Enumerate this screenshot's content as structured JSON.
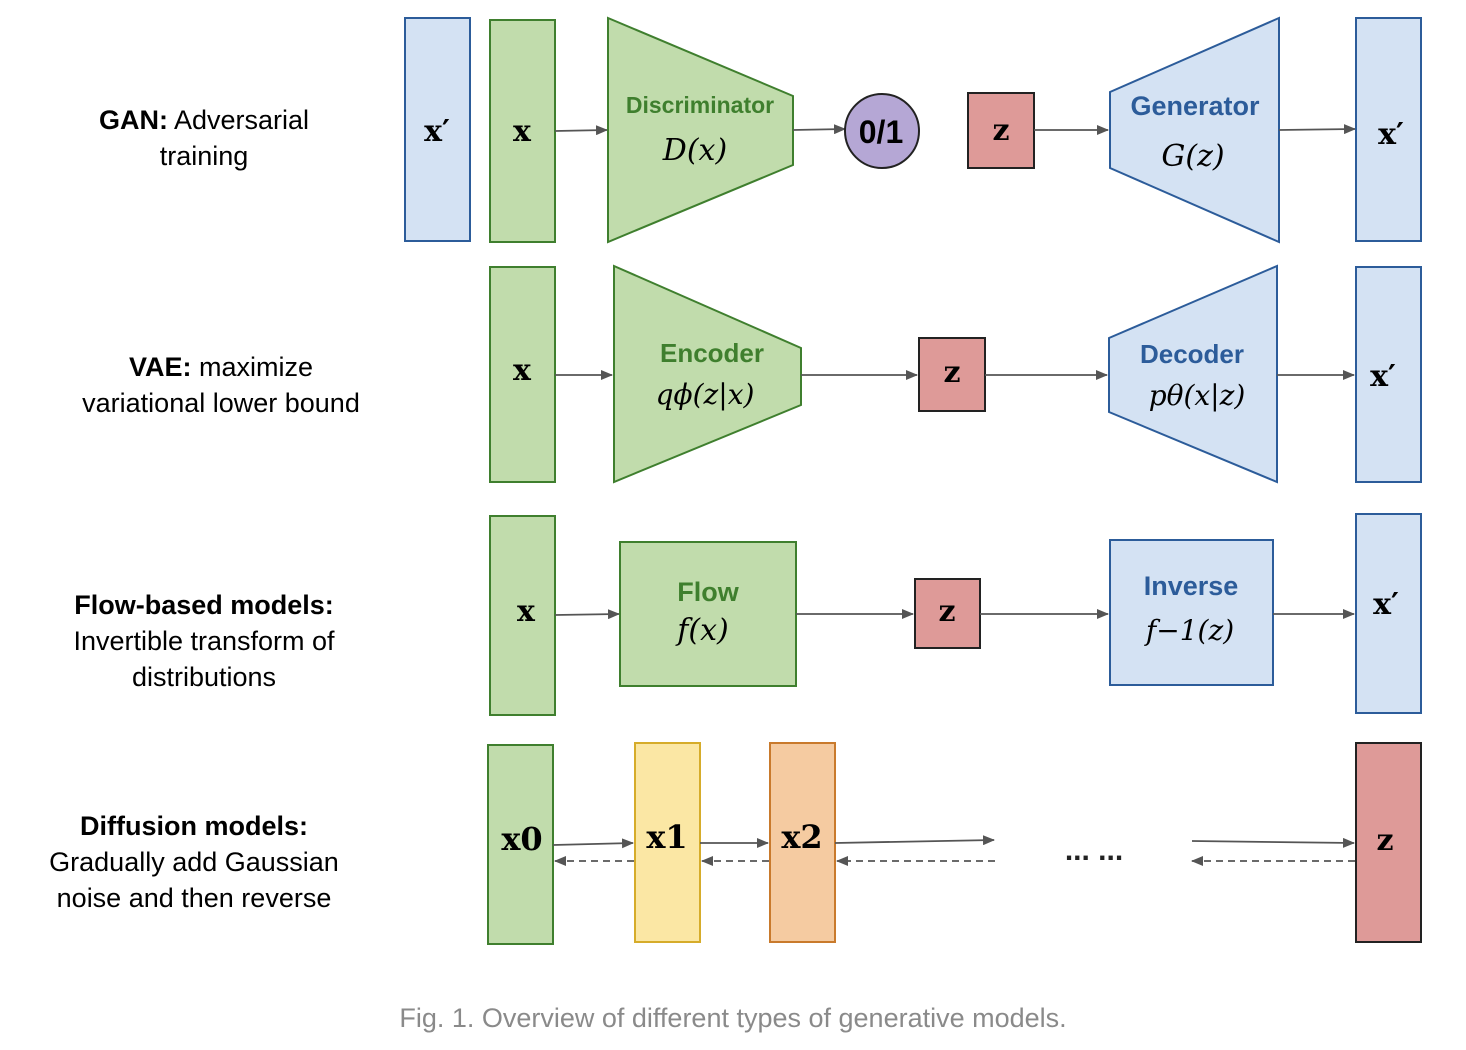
{
  "rows": [
    {
      "bold": "GAN:",
      "rest_line1": "Adversarial",
      "line2": "training",
      "line3": ""
    },
    {
      "bold": "VAE:",
      "rest_line1": "maximize",
      "line2": "variational lower bound",
      "line3": ""
    },
    {
      "bold": "Flow-based models:",
      "rest_line1": "",
      "line2": "Invertible transform of",
      "line3": "distributions"
    },
    {
      "bold": "Diffusion models:",
      "rest_line1": "",
      "line2": "Gradually add Gaussian",
      "line3": "noise and then reverse"
    }
  ],
  "gan": {
    "x_prime": "x′",
    "x": "x",
    "discriminator_title": "Discriminator",
    "discriminator_fn": "D(x)",
    "output": "0/1",
    "z": "z",
    "generator_title": "Generator",
    "generator_fn": "G(z)",
    "x_prime_out": "x′"
  },
  "vae": {
    "x": "x",
    "encoder_title": "Encoder",
    "encoder_fn": "qϕ(z|x)",
    "z": "z",
    "decoder_title": "Decoder",
    "decoder_fn": "pθ(x|z)",
    "x_prime_out": "x′"
  },
  "flow": {
    "x": "x",
    "flow_title": "Flow",
    "flow_fn": "f(x)",
    "z": "z",
    "inverse_title": "Inverse",
    "inverse_fn": "f−1(z)",
    "x_prime_out": "x′"
  },
  "diffusion": {
    "x0": "x0",
    "x1": "x1",
    "x2": "x2",
    "ellipsis": "... ...",
    "z": "z"
  },
  "caption": "Fig. 1. Overview of different types of generative models.",
  "colors": {
    "green_fill": "#c1dcac",
    "green_stroke": "#3f7f2e",
    "blue_fill": "#d4e2f3",
    "blue_stroke": "#2c5c9a",
    "red_fill": "#de9a98",
    "red_stroke": "#222222",
    "purple_fill": "#b5a7d5",
    "yellow_fill": "#fbe7a4",
    "yellow_stroke": "#d6ac2a",
    "orange_fill": "#f5cba1",
    "orange_stroke": "#c97a2c",
    "arrow": "#555555"
  }
}
